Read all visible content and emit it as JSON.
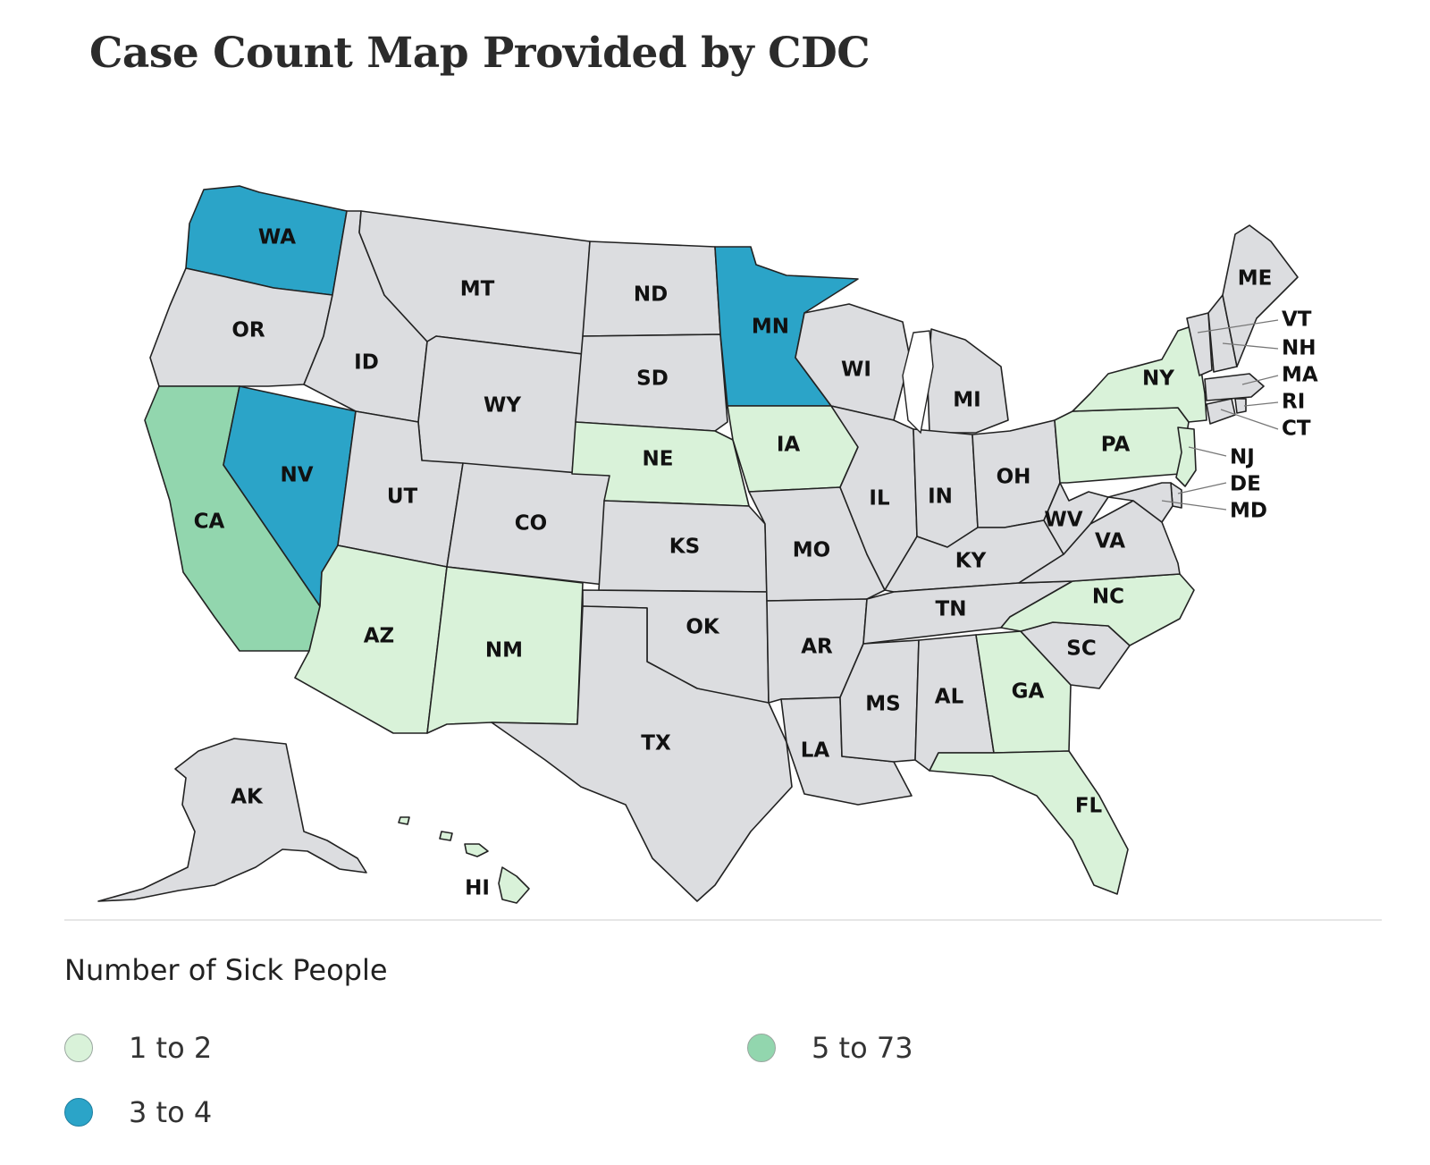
{
  "title": "Case Count Map Provided by CDC",
  "legend": {
    "title": "Number of Sick People",
    "items": [
      {
        "label": "1 to 2",
        "color": "#d9f2d9"
      },
      {
        "label": "5 to 73",
        "color": "#92d6ae"
      },
      {
        "label": "3 to 4",
        "color": "#2ba4c8"
      }
    ]
  },
  "colors": {
    "none": "#dcdde0",
    "low": "#d9f2d9",
    "mid": "#2ba4c8",
    "high": "#92d6ae"
  },
  "states": [
    {
      "abbr": "WA",
      "category": "3 to 4"
    },
    {
      "abbr": "OR",
      "category": ""
    },
    {
      "abbr": "CA",
      "category": "5 to 73"
    },
    {
      "abbr": "NV",
      "category": "3 to 4"
    },
    {
      "abbr": "ID",
      "category": ""
    },
    {
      "abbr": "MT",
      "category": ""
    },
    {
      "abbr": "WY",
      "category": ""
    },
    {
      "abbr": "UT",
      "category": ""
    },
    {
      "abbr": "CO",
      "category": ""
    },
    {
      "abbr": "AZ",
      "category": "1 to 2"
    },
    {
      "abbr": "NM",
      "category": "1 to 2"
    },
    {
      "abbr": "ND",
      "category": ""
    },
    {
      "abbr": "SD",
      "category": ""
    },
    {
      "abbr": "NE",
      "category": "1 to 2"
    },
    {
      "abbr": "KS",
      "category": ""
    },
    {
      "abbr": "OK",
      "category": ""
    },
    {
      "abbr": "TX",
      "category": ""
    },
    {
      "abbr": "MN",
      "category": "3 to 4"
    },
    {
      "abbr": "IA",
      "category": "1 to 2"
    },
    {
      "abbr": "MO",
      "category": ""
    },
    {
      "abbr": "AR",
      "category": ""
    },
    {
      "abbr": "LA",
      "category": ""
    },
    {
      "abbr": "WI",
      "category": ""
    },
    {
      "abbr": "IL",
      "category": ""
    },
    {
      "abbr": "MI",
      "category": ""
    },
    {
      "abbr": "IN",
      "category": ""
    },
    {
      "abbr": "OH",
      "category": ""
    },
    {
      "abbr": "KY",
      "category": ""
    },
    {
      "abbr": "TN",
      "category": ""
    },
    {
      "abbr": "MS",
      "category": ""
    },
    {
      "abbr": "AL",
      "category": ""
    },
    {
      "abbr": "GA",
      "category": "1 to 2"
    },
    {
      "abbr": "FL",
      "category": "1 to 2"
    },
    {
      "abbr": "SC",
      "category": ""
    },
    {
      "abbr": "NC",
      "category": "1 to 2"
    },
    {
      "abbr": "VA",
      "category": ""
    },
    {
      "abbr": "WV",
      "category": ""
    },
    {
      "abbr": "PA",
      "category": "1 to 2"
    },
    {
      "abbr": "NY",
      "category": "1 to 2"
    },
    {
      "abbr": "NJ",
      "category": "1 to 2"
    },
    {
      "abbr": "DE",
      "category": ""
    },
    {
      "abbr": "MD",
      "category": ""
    },
    {
      "abbr": "CT",
      "category": ""
    },
    {
      "abbr": "RI",
      "category": ""
    },
    {
      "abbr": "MA",
      "category": ""
    },
    {
      "abbr": "VT",
      "category": ""
    },
    {
      "abbr": "NH",
      "category": ""
    },
    {
      "abbr": "ME",
      "category": ""
    },
    {
      "abbr": "AK",
      "category": ""
    },
    {
      "abbr": "HI",
      "category": "1 to 2"
    }
  ]
}
